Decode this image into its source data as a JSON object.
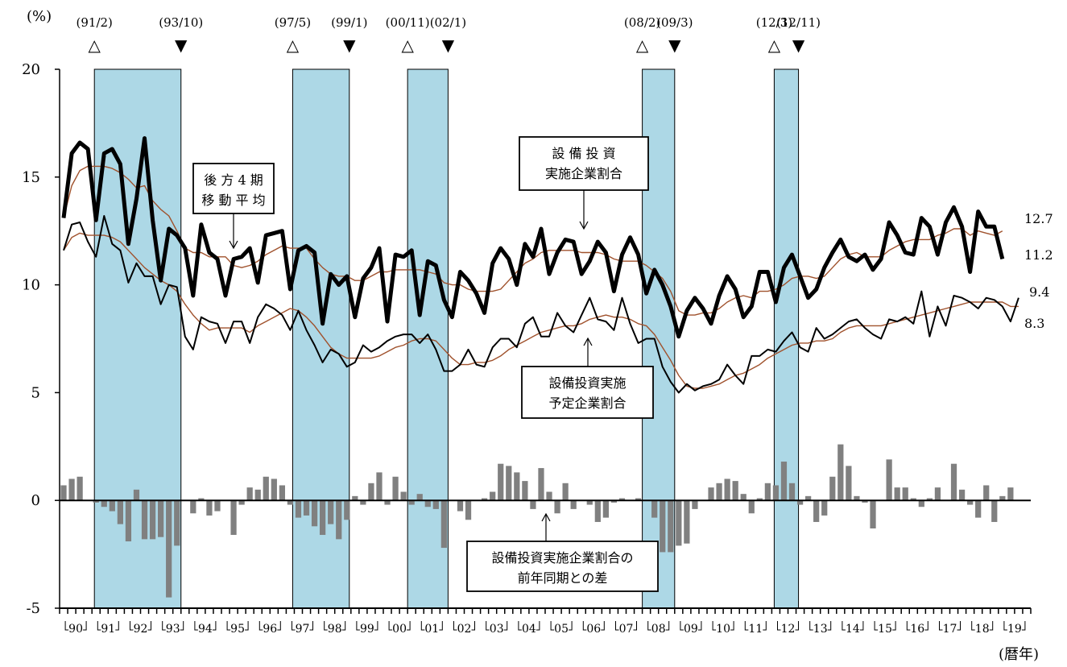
{
  "chart_data": {
    "type": "line",
    "y_unit": "(%)",
    "x_unit": "(暦年)",
    "ylim": [
      -5,
      20
    ],
    "y_ticks": [
      20,
      15,
      10,
      5,
      0,
      -5
    ],
    "x_start": "1990Q1",
    "x_tick_labels": [
      "90",
      "91",
      "92",
      "93",
      "94",
      "95",
      "96",
      "97",
      "98",
      "99",
      "00",
      "01",
      "02",
      "03",
      "04",
      "05",
      "06",
      "07",
      "08",
      "09",
      "10",
      "11",
      "12",
      "13",
      "14",
      "15",
      "16",
      "17",
      "18",
      "19"
    ],
    "recessions": [
      {
        "peak": "(91/2)",
        "trough": "(93/10)",
        "start": 4.3,
        "end": 15.0,
        "peak_marker": "△",
        "trough_marker": "▼"
      },
      {
        "peak": "(97/5)",
        "trough": "(99/1)",
        "start": 28.8,
        "end": 35.8,
        "peak_marker": "△",
        "trough_marker": "▼"
      },
      {
        "peak": "(00/11)",
        "trough": "(02/1)",
        "start": 43.0,
        "end": 48.0,
        "peak_marker": "△",
        "trough_marker": "▼"
      },
      {
        "peak": "(08/2)",
        "trough": "(09/3)",
        "start": 72.0,
        "end": 76.0,
        "peak_marker": "△",
        "trough_marker": "▼"
      },
      {
        "peak": "(12/3)",
        "trough": "(12/11)",
        "start": 88.3,
        "end": 91.3,
        "peak_marker": "△",
        "trough_marker": "▼"
      }
    ],
    "series": [
      {
        "name": "設備投資実施企業割合",
        "style": "thick",
        "values": [
          13.1,
          16.1,
          16.6,
          16.3,
          13.0,
          16.1,
          16.3,
          15.6,
          11.9,
          14.0,
          16.8,
          13.0,
          10.2,
          12.6,
          12.3,
          11.7,
          9.5,
          12.8,
          11.5,
          11.2,
          9.5,
          11.2,
          11.3,
          11.7,
          10.1,
          12.3,
          12.4,
          12.5,
          9.8,
          11.6,
          11.8,
          11.5,
          8.2,
          10.5,
          10.0,
          10.4,
          8.5,
          10.3,
          10.8,
          11.7,
          8.3,
          11.4,
          11.3,
          11.6,
          8.6,
          11.1,
          10.9,
          9.3,
          8.5,
          10.6,
          10.2,
          9.6,
          8.7,
          11.0,
          11.7,
          11.2,
          10.0,
          11.9,
          11.3,
          12.6,
          10.5,
          11.5,
          12.1,
          12.0,
          10.5,
          11.1,
          12.0,
          11.5,
          9.7,
          11.4,
          12.2,
          11.4,
          9.6,
          10.7,
          10.0,
          9.0,
          7.6,
          8.8,
          9.4,
          8.9,
          8.2,
          9.5,
          10.4,
          9.8,
          8.5,
          9.0,
          10.6,
          10.6,
          9.2,
          10.8,
          11.4,
          10.4,
          9.4,
          9.8,
          10.8,
          11.5,
          12.1,
          11.3,
          11.1,
          11.4,
          10.7,
          11.2,
          12.9,
          12.3,
          11.5,
          11.4,
          13.1,
          12.7,
          11.4,
          12.9,
          13.6,
          12.7,
          10.6,
          13.4,
          12.7,
          12.7,
          11.2
        ]
      },
      {
        "name": "設備投資実施予定企業割合",
        "style": "thin",
        "values": [
          11.6,
          12.8,
          12.9,
          12.0,
          11.3,
          13.2,
          11.9,
          11.6,
          10.1,
          11.0,
          10.4,
          10.4,
          9.1,
          10.0,
          9.9,
          7.6,
          7.0,
          8.5,
          8.3,
          8.2,
          7.3,
          8.3,
          8.3,
          7.3,
          8.5,
          9.1,
          8.9,
          8.6,
          7.9,
          8.8,
          7.9,
          7.2,
          6.4,
          7.0,
          6.8,
          6.2,
          6.4,
          7.2,
          6.9,
          7.1,
          7.4,
          7.6,
          7.7,
          7.7,
          7.3,
          7.7,
          7.0,
          6.0,
          6.0,
          6.3,
          7.0,
          6.3,
          6.2,
          7.1,
          7.5,
          7.5,
          7.1,
          8.2,
          8.5,
          7.6,
          7.6,
          8.7,
          8.1,
          7.8,
          8.6,
          9.4,
          8.4,
          8.3,
          7.9,
          9.4,
          8.2,
          7.3,
          7.5,
          7.5,
          6.2,
          5.5,
          5.0,
          5.4,
          5.1,
          5.3,
          5.4,
          5.6,
          6.3,
          5.8,
          5.4,
          6.7,
          6.7,
          7.0,
          6.9,
          7.4,
          7.8,
          7.1,
          6.9,
          8.0,
          7.5,
          7.7,
          8.0,
          8.3,
          8.4,
          8.0,
          7.7,
          7.5,
          8.4,
          8.3,
          8.5,
          8.2,
          9.7,
          7.6,
          9.0,
          8.1,
          9.5,
          9.4,
          9.2,
          8.9,
          9.4,
          9.3,
          9.0,
          8.3,
          9.4
        ]
      },
      {
        "name": "後方4期移動平均 (実施)",
        "style": "ma",
        "values": [
          13.1,
          14.6,
          15.3,
          15.5,
          15.5,
          15.5,
          15.4,
          15.2,
          14.9,
          14.5,
          14.6,
          13.9,
          13.5,
          13.2,
          12.5,
          11.7,
          11.5,
          11.5,
          11.3,
          11.3,
          11.3,
          10.9,
          10.8,
          10.9,
          11.1,
          11.4,
          11.6,
          11.8,
          11.7,
          11.7,
          11.7,
          11.2,
          10.8,
          10.5,
          10.4,
          10.4,
          10.2,
          10.2,
          10.4,
          10.6,
          10.6,
          10.7,
          10.7,
          10.7,
          10.7,
          10.6,
          10.5,
          10.1,
          10.0,
          10.0,
          9.8,
          9.7,
          9.7,
          9.7,
          9.8,
          10.2,
          10.6,
          11.0,
          11.2,
          11.5,
          11.6,
          11.6,
          11.6,
          11.6,
          11.5,
          11.5,
          11.5,
          11.4,
          11.2,
          11.1,
          11.1,
          11.1,
          10.9,
          10.6,
          10.3,
          9.7,
          8.8,
          8.6,
          8.6,
          8.7,
          8.7,
          8.9,
          9.2,
          9.4,
          9.5,
          9.4,
          9.7,
          9.7,
          9.8,
          10.0,
          10.3,
          10.4,
          10.4,
          10.3,
          10.4,
          10.8,
          11.2,
          11.4,
          11.5,
          11.3,
          11.3,
          11.3,
          11.6,
          11.8,
          12.0,
          12.1,
          12.1,
          12.1,
          12.3,
          12.4,
          12.6,
          12.6,
          12.3,
          12.5,
          12.4,
          12.3,
          12.5
        ]
      },
      {
        "name": "後方4期移動平均 (予定)",
        "style": "ma",
        "values": [
          11.6,
          12.2,
          12.4,
          12.3,
          12.3,
          12.3,
          12.2,
          12.0,
          11.6,
          11.2,
          10.8,
          10.5,
          10.2,
          10.0,
          9.7,
          9.1,
          8.6,
          8.2,
          7.9,
          8.0,
          8.0,
          8.0,
          8.0,
          7.8,
          8.1,
          8.3,
          8.5,
          8.7,
          8.9,
          8.8,
          8.5,
          8.1,
          7.6,
          7.1,
          6.8,
          6.6,
          6.6,
          6.6,
          6.6,
          6.7,
          6.9,
          7.1,
          7.2,
          7.4,
          7.5,
          7.5,
          7.4,
          7.0,
          6.6,
          6.3,
          6.3,
          6.4,
          6.4,
          6.5,
          6.7,
          7.0,
          7.2,
          7.4,
          7.6,
          7.8,
          7.9,
          8.0,
          8.1,
          8.1,
          8.2,
          8.4,
          8.5,
          8.6,
          8.5,
          8.5,
          8.4,
          8.2,
          8.1,
          7.7,
          7.1,
          6.5,
          5.8,
          5.3,
          5.2,
          5.2,
          5.3,
          5.4,
          5.6,
          5.8,
          5.9,
          6.1,
          6.3,
          6.6,
          6.8,
          7.0,
          7.2,
          7.3,
          7.3,
          7.4,
          7.4,
          7.5,
          7.8,
          8.0,
          8.1,
          8.1,
          8.1,
          8.1,
          8.2,
          8.3,
          8.4,
          8.5,
          8.6,
          8.7,
          8.8,
          8.9,
          9.0,
          9.1,
          9.2,
          9.2,
          9.2,
          9.2,
          9.2,
          9.0,
          9.0
        ]
      },
      {
        "name": "設備投資実施企業割合の前年同期との差",
        "style": "bar",
        "values": [
          0.7,
          1.0,
          1.1,
          null,
          -0.1,
          -0.3,
          -0.5,
          -1.1,
          -1.9,
          0.5,
          -1.8,
          -1.8,
          -1.7,
          -4.5,
          -2.1,
          null,
          -0.6,
          0.1,
          -0.7,
          -0.5,
          null,
          -1.6,
          -0.2,
          0.6,
          0.5,
          1.1,
          1.0,
          0.7,
          -0.2,
          -0.8,
          -0.7,
          -1.2,
          -1.6,
          -1.1,
          -1.8,
          -0.9,
          0.2,
          -0.2,
          0.8,
          1.3,
          -0.2,
          1.1,
          0.4,
          -0.2,
          0.3,
          -0.3,
          -0.4,
          -2.2,
          null,
          -0.5,
          -0.9,
          null,
          0.1,
          0.4,
          1.7,
          1.6,
          1.3,
          0.9,
          -0.4,
          1.5,
          0.4,
          -0.6,
          0.8,
          -0.4,
          null,
          -0.2,
          -1.0,
          -0.8,
          -0.1,
          0.1,
          null,
          0.1,
          null,
          -0.8,
          -2.4,
          -2.4,
          -2.1,
          -2.0,
          -0.4,
          null,
          0.6,
          0.8,
          1.0,
          0.9,
          0.3,
          -0.6,
          0.1,
          0.8,
          0.7,
          1.8,
          0.8,
          -0.2,
          0.2,
          -1.0,
          -0.7,
          1.1,
          2.6,
          1.6,
          0.2,
          -0.1,
          -1.3,
          null,
          1.9,
          0.6,
          0.6,
          0.1,
          -0.3,
          0.1,
          0.6,
          null,
          1.7,
          0.5,
          -0.2,
          -0.8,
          0.7,
          -1.0,
          0.2,
          0.6,
          null
        ]
      }
    ],
    "end_labels": [
      "12.7",
      "11.2",
      "9.4",
      "8.3"
    ],
    "annotations": [
      {
        "lines": [
          "後 方 4 期",
          "移 動 平 均"
        ]
      },
      {
        "lines": [
          "設 備 投 資",
          "実施企業割合"
        ]
      },
      {
        "lines": [
          "設備投資実施",
          "予定企業割合"
        ]
      },
      {
        "lines": [
          "設備投資実施企業割合の",
          "前年同期との差"
        ]
      }
    ],
    "colors": {
      "recession_band": "#add8e6",
      "moving_average": "#a0522d",
      "bars": "#808080",
      "lines": "#000000"
    },
    "grid": false
  }
}
